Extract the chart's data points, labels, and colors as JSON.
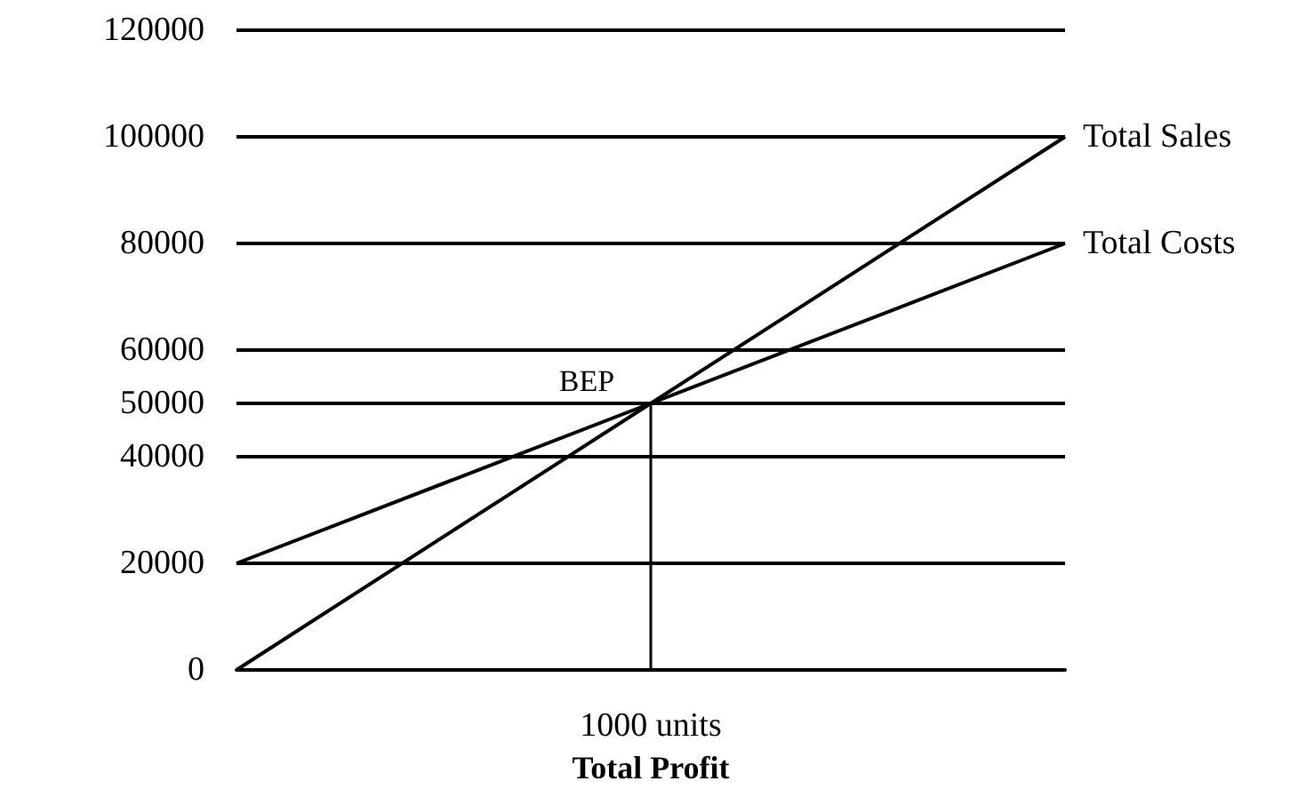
{
  "chart_data": {
    "type": "line",
    "xlabel": "Total Profit",
    "categories": [
      null,
      "1000 units",
      null
    ],
    "series": [
      {
        "name": "Total Sales",
        "color": "#000000",
        "values": [
          0,
          50000,
          100000
        ]
      },
      {
        "name": "Total Costs",
        "color": "#000000",
        "values": [
          20000,
          50000,
          80000
        ]
      }
    ],
    "ylim": [
      0,
      120000
    ],
    "yticks": [
      0,
      20000,
      40000,
      50000,
      60000,
      80000,
      100000,
      120000
    ],
    "ref_lines": [
      {
        "axis": "x",
        "value": "1000 units",
        "label": "BEP",
        "color": "#000000"
      }
    ],
    "grid": "y",
    "marker": "none",
    "line_style": "solid",
    "legend": false
  }
}
